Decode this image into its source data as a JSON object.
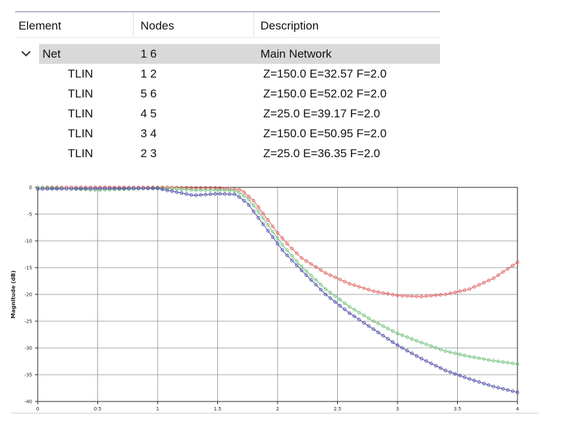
{
  "table": {
    "columns": [
      "Element",
      "Nodes",
      "Description"
    ],
    "root": {
      "element": "Net",
      "nodes": "1 6",
      "description": "Main Network",
      "expanded": true
    },
    "children": [
      {
        "element": "TLIN",
        "nodes": "1 2",
        "description": "Z=150.0 E=32.57 F=2.0"
      },
      {
        "element": "TLIN",
        "nodes": "5 6",
        "description": "Z=150.0 E=52.02 F=2.0"
      },
      {
        "element": "TLIN",
        "nodes": "4 5",
        "description": "Z=25.0 E=39.17 F=2.0"
      },
      {
        "element": "TLIN",
        "nodes": "3 4",
        "description": "Z=150.0 E=50.95 F=2.0"
      },
      {
        "element": "TLIN",
        "nodes": "2 3",
        "description": "Z=25.0 E=36.35 F=2.0"
      }
    ]
  },
  "chart_data": {
    "type": "line",
    "ylabel": "Magnitude (dB)",
    "xlabel": "",
    "xlim": [
      0,
      4
    ],
    "ylim": [
      -40,
      0
    ],
    "x_ticks": [
      "0",
      "0.5",
      "1",
      "1.5",
      "2",
      "2.5",
      "3",
      "3.5",
      "4"
    ],
    "y_ticks": [
      "0",
      "-5",
      "-10",
      "-15",
      "-20",
      "-25",
      "-30",
      "-35",
      "-40"
    ],
    "grid": true,
    "markers": "circle",
    "series": [
      {
        "color": "#e06060",
        "x": [
          0,
          0.5,
          1,
          1.3,
          1.5,
          1.7,
          1.8,
          1.9,
          2.0,
          2.1,
          2.2,
          2.4,
          2.6,
          2.8,
          3.0,
          3.2,
          3.4,
          3.6,
          3.8,
          4.0
        ],
        "y": [
          0,
          0,
          0,
          -0.1,
          -0.1,
          -0.5,
          -2.5,
          -5.5,
          -8.5,
          -11,
          -13.2,
          -16,
          -18,
          -19.4,
          -20.2,
          -20.4,
          -20,
          -19,
          -17,
          -14
        ]
      },
      {
        "color": "#6fc07a",
        "x": [
          0,
          0.5,
          1,
          1.3,
          1.5,
          1.65,
          1.75,
          1.85,
          1.95,
          2.05,
          2.2,
          2.4,
          2.6,
          2.8,
          3.0,
          3.2,
          3.4,
          3.6,
          3.8,
          4.0
        ],
        "y": [
          0,
          -0.5,
          -0.1,
          -0.5,
          -0.5,
          -0.6,
          -2,
          -4.8,
          -8,
          -11,
          -14.8,
          -19,
          -22.3,
          -25,
          -27.3,
          -29,
          -30.6,
          -31.6,
          -32.4,
          -33
        ]
      },
      {
        "color": "#4b4ba8",
        "x": [
          0,
          0.5,
          1,
          1.3,
          1.5,
          1.65,
          1.75,
          1.85,
          1.95,
          2.05,
          2.2,
          2.4,
          2.6,
          2.8,
          3.0,
          3.2,
          3.4,
          3.6,
          3.8,
          4.0
        ],
        "y": [
          -0.3,
          -0.2,
          -0.2,
          -1.5,
          -1.2,
          -1.3,
          -3,
          -6,
          -9,
          -12,
          -15.5,
          -20,
          -23.5,
          -26.5,
          -29.5,
          -32,
          -34.2,
          -35.8,
          -37.2,
          -38.3
        ]
      }
    ]
  }
}
